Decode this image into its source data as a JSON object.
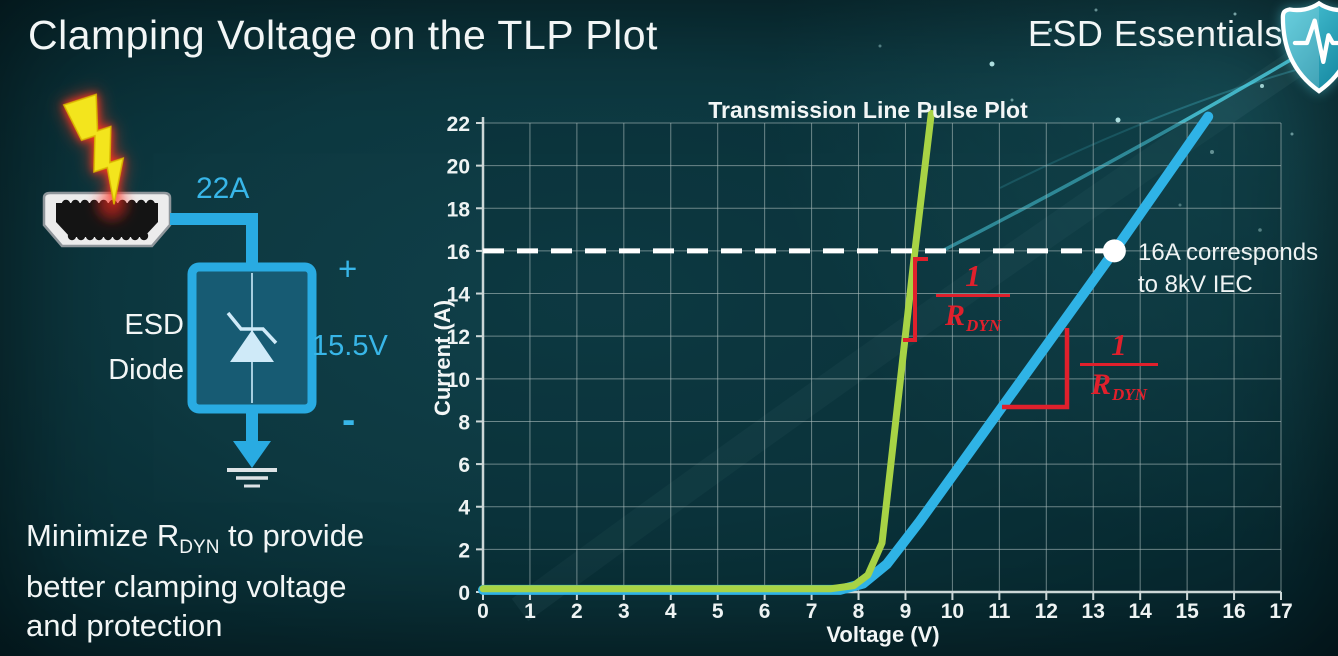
{
  "slide": {
    "title": "Clamping Voltage on the TLP Plot",
    "brand": "ESD Essentials",
    "footer": {
      "prefix": "Minimize R",
      "sub": "DYN",
      "suffix": " to provide",
      "line2": "better clamping voltage",
      "line3": "and protection"
    }
  },
  "diagram": {
    "surge_current": "22A",
    "device_label_line1": "ESD",
    "device_label_line2": "Diode",
    "plus": "+",
    "clamp_voltage": "15.5V",
    "minus": "-",
    "colors": {
      "wire_blue": "#29abe2",
      "label_cyan": "#38b6e8",
      "diode_fill": "#175b73",
      "bolt_yellow": "#f3e51d",
      "bolt_glow_red": "#ff3322"
    }
  },
  "chart_data": {
    "type": "line",
    "title": "Transmission Line Pulse Plot",
    "xlabel": "Voltage (V)",
    "ylabel": "Current (A)",
    "xlim": [
      0,
      17
    ],
    "ylim": [
      0,
      22
    ],
    "x_tick_step": 1,
    "y_tick_step": 2,
    "grid": true,
    "series": [
      {
        "name": "steep low-RDYN ESD diode curve",
        "color": "#a8d345",
        "points": [
          [
            0,
            0.15
          ],
          [
            7.4,
            0.15
          ],
          [
            7.9,
            0.3
          ],
          [
            8.2,
            0.8
          ],
          [
            8.5,
            2.3
          ],
          [
            9.2,
            16
          ],
          [
            9.55,
            22.45
          ]
        ]
      },
      {
        "name": "shallow high-RDYN ESD diode curve",
        "color": "#2fb3e6",
        "points": [
          [
            0,
            0.1
          ],
          [
            7.6,
            0.1
          ],
          [
            8.1,
            0.4
          ],
          [
            8.6,
            1.3
          ],
          [
            9.3,
            3.3
          ],
          [
            13.45,
            16
          ],
          [
            15.45,
            22.3
          ]
        ]
      }
    ],
    "dashed_reference": {
      "y": 16,
      "x_start": 0,
      "x_end": 13.45,
      "color": "#ffffff"
    },
    "marker_point": {
      "x": 13.45,
      "y": 16
    },
    "marker_label_line1": "16A corresponds",
    "marker_label_line2": "to 8kV IEC",
    "slope_annotations": [
      {
        "numerator": "1",
        "denominator_base": "R",
        "denominator_sub": "DYN",
        "color": "#e0202c"
      },
      {
        "numerator": "1",
        "denominator_base": "R",
        "denominator_sub": "DYN",
        "color": "#e0202c"
      }
    ]
  }
}
